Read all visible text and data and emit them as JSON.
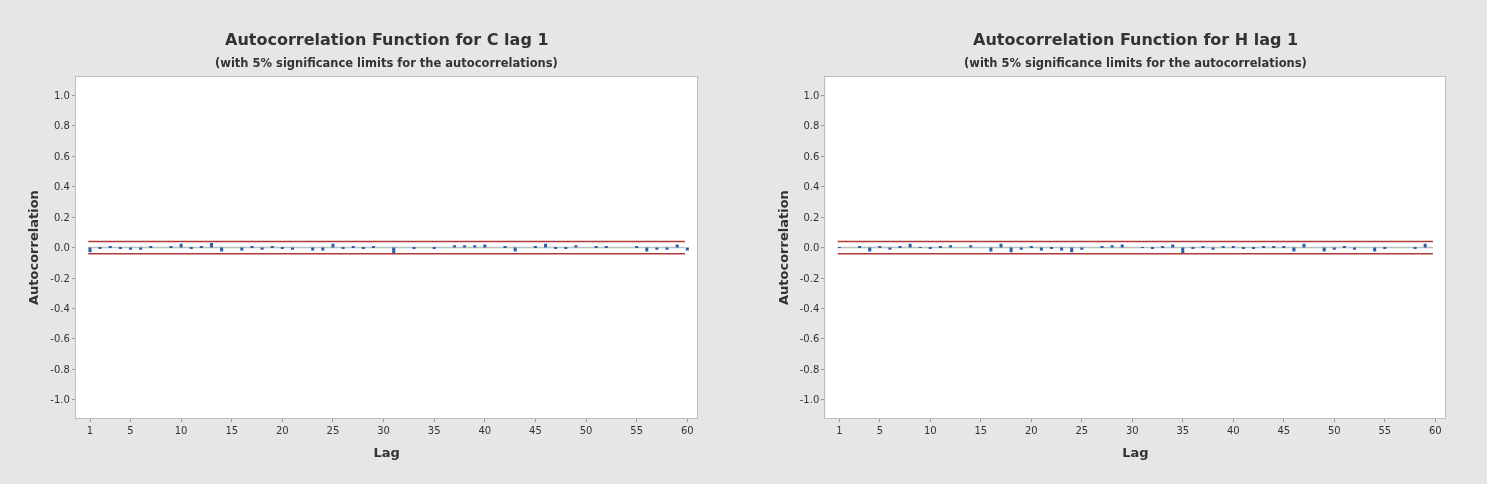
{
  "chart_data": [
    {
      "type": "bar",
      "title": "Autocorrelation Function for C lag 1",
      "subtitle": "(with 5% significance limits for the autocorrelations)",
      "xlabel": "Lag",
      "ylabel": "Autocorrelation",
      "color": "#2a5ea8",
      "x": [
        1,
        2,
        3,
        4,
        5,
        6,
        7,
        8,
        9,
        10,
        11,
        12,
        13,
        14,
        15,
        16,
        17,
        18,
        19,
        20,
        21,
        22,
        23,
        24,
        25,
        26,
        27,
        28,
        29,
        30,
        31,
        32,
        33,
        34,
        35,
        36,
        37,
        38,
        39,
        40,
        41,
        42,
        43,
        44,
        45,
        46,
        47,
        48,
        49,
        50,
        51,
        52,
        53,
        54,
        55,
        56,
        57,
        58,
        59,
        60
      ],
      "values": [
        -0.03,
        -0.01,
        0.01,
        -0.01,
        -0.015,
        -0.015,
        0.01,
        0,
        0.005,
        0.025,
        -0.01,
        0.005,
        0.03,
        -0.025,
        0,
        -0.02,
        0.005,
        -0.015,
        0.01,
        -0.01,
        -0.015,
        0,
        -0.02,
        -0.02,
        0.025,
        -0.01,
        0.01,
        -0.01,
        0.005,
        0,
        -0.035,
        0,
        -0.005,
        0,
        -0.005,
        0,
        0.015,
        0.015,
        0.015,
        0.02,
        0,
        0.005,
        -0.025,
        0,
        0.005,
        0.025,
        -0.01,
        -0.01,
        0.015,
        0,
        0.01,
        0.01,
        0,
        0,
        0.005,
        -0.025,
        -0.015,
        -0.015,
        0.02,
        -0.02
      ],
      "xlim": [
        -0.4,
        61
      ],
      "xticks": [
        1,
        5,
        10,
        15,
        20,
        25,
        30,
        35,
        40,
        45,
        50,
        55,
        60
      ],
      "ylim": [
        -1.12,
        1.12
      ],
      "yticks": [
        {
          "value": -1,
          "label": "-1.0"
        },
        {
          "value": -0.8,
          "label": "-0.8"
        },
        {
          "value": -0.6,
          "label": "-0.6"
        },
        {
          "value": -0.4,
          "label": "-0.4"
        },
        {
          "value": -0.2,
          "label": "-0.2"
        },
        {
          "value": 0,
          "label": "0.0"
        },
        {
          "value": 0.2,
          "label": "0.2"
        },
        {
          "value": 0.4,
          "label": "0.4"
        },
        {
          "value": 0.6,
          "label": "0.6"
        },
        {
          "value": 0.8,
          "label": "0.8"
        },
        {
          "value": 1,
          "label": "1.0"
        }
      ],
      "ref_lines": [
        {
          "axis": "y",
          "value": 0,
          "color": "#c0c0c0"
        },
        {
          "axis": "y",
          "value": 0.04,
          "color": "#b03a3a"
        },
        {
          "axis": "y",
          "value": -0.04,
          "color": "#b03a3a"
        }
      ],
      "grid": false
    },
    {
      "type": "bar",
      "title": "Autocorrelation Function for H lag 1",
      "subtitle": "(with 5% significance limits for the autocorrelations)",
      "xlabel": "Lag",
      "ylabel": "Autocorrelation",
      "color": "#2a5ea8",
      "x": [
        1,
        2,
        3,
        4,
        5,
        6,
        7,
        8,
        9,
        10,
        11,
        12,
        13,
        14,
        15,
        16,
        17,
        18,
        19,
        20,
        21,
        22,
        23,
        24,
        25,
        26,
        27,
        28,
        29,
        30,
        31,
        32,
        33,
        34,
        35,
        36,
        37,
        38,
        39,
        40,
        41,
        42,
        43,
        44,
        45,
        46,
        47,
        48,
        49,
        50,
        51,
        52,
        53,
        54,
        55,
        56,
        57,
        58,
        59,
        60
      ],
      "values": [
        0.003,
        0,
        0.01,
        -0.025,
        0.005,
        -0.015,
        0.005,
        0.025,
        0.003,
        -0.01,
        0.005,
        0.015,
        0,
        0.015,
        0,
        -0.025,
        0.025,
        -0.03,
        -0.015,
        0.01,
        -0.02,
        -0.01,
        -0.02,
        -0.03,
        -0.015,
        0,
        0.01,
        0.015,
        0.02,
        0,
        0.003,
        -0.01,
        0.005,
        0.02,
        -0.035,
        -0.01,
        0.01,
        -0.015,
        0.01,
        0.01,
        -0.01,
        -0.01,
        0.01,
        0.01,
        0.01,
        -0.025,
        0.025,
        0,
        -0.025,
        -0.015,
        0.005,
        -0.015,
        0,
        -0.025,
        -0.005,
        0,
        0,
        -0.01,
        0.025,
        0
      ],
      "xlim": [
        -0.4,
        61
      ],
      "xticks": [
        1,
        5,
        10,
        15,
        20,
        25,
        30,
        35,
        40,
        45,
        50,
        55,
        60
      ],
      "ylim": [
        -1.12,
        1.12
      ],
      "yticks": [
        {
          "value": -1,
          "label": "-1.0"
        },
        {
          "value": -0.8,
          "label": "-0.8"
        },
        {
          "value": -0.6,
          "label": "-0.6"
        },
        {
          "value": -0.4,
          "label": "-0.4"
        },
        {
          "value": -0.2,
          "label": "-0.2"
        },
        {
          "value": 0,
          "label": "0.0"
        },
        {
          "value": 0.2,
          "label": "0.2"
        },
        {
          "value": 0.4,
          "label": "0.4"
        },
        {
          "value": 0.6,
          "label": "0.6"
        },
        {
          "value": 0.8,
          "label": "0.8"
        },
        {
          "value": 1,
          "label": "1.0"
        }
      ],
      "ref_lines": [
        {
          "axis": "y",
          "value": 0,
          "color": "#c0c0c0"
        },
        {
          "axis": "y",
          "value": 0.04,
          "color": "#b03a3a"
        },
        {
          "axis": "y",
          "value": -0.04,
          "color": "#b03a3a"
        }
      ],
      "grid": false
    }
  ]
}
